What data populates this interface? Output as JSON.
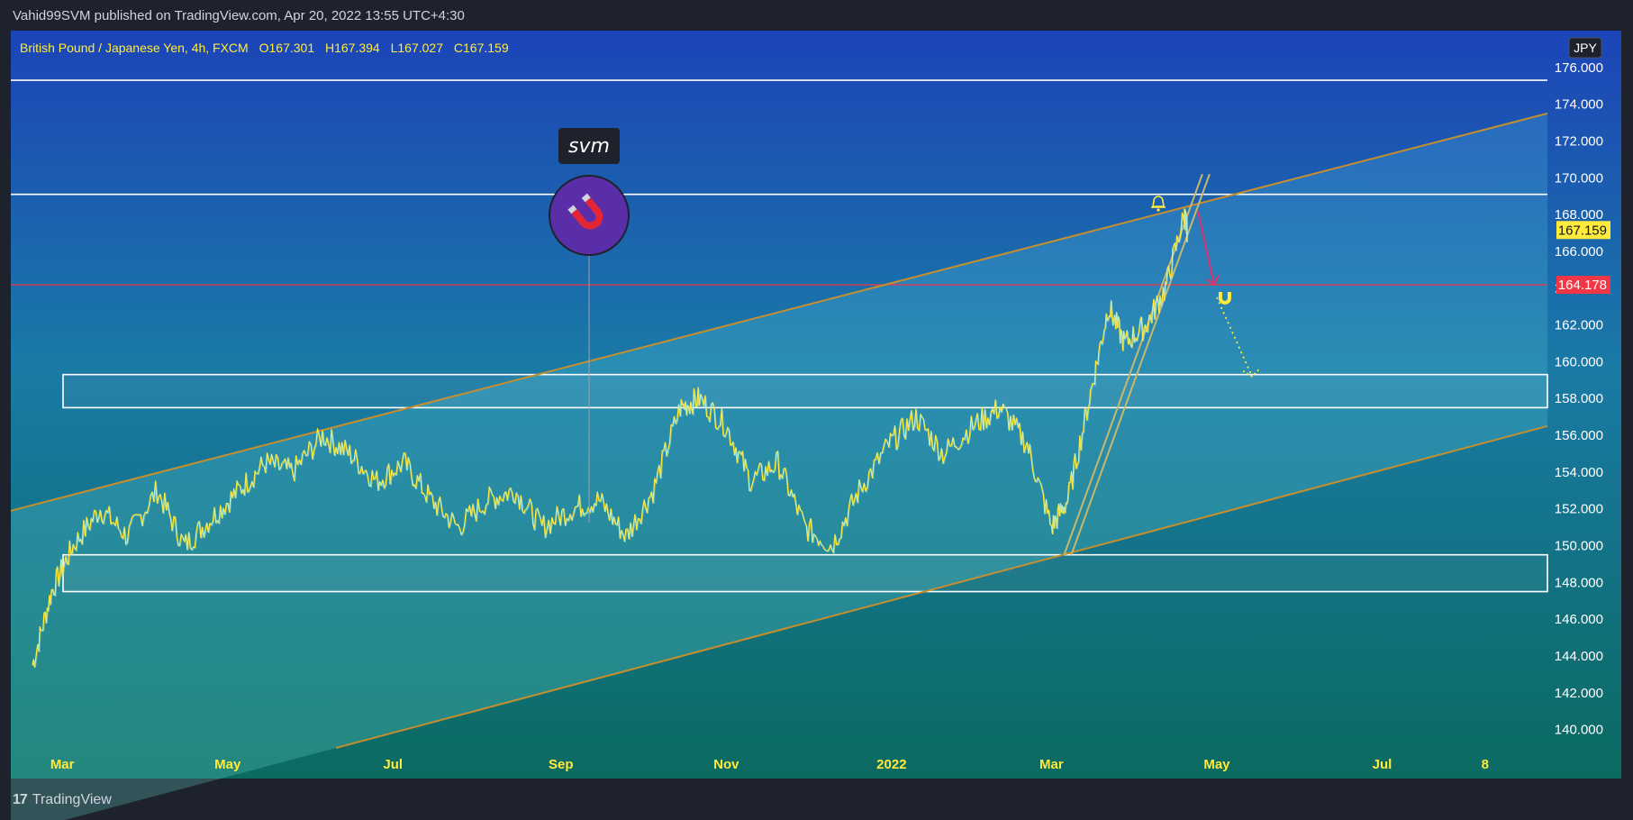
{
  "header": {
    "publisher": "Vahid99SVM published on TradingView.com, Apr 20, 2022 13:55 UTC+4:30"
  },
  "footer": {
    "brand": "TradingView",
    "logo_text": "17"
  },
  "symbol": {
    "name": "British Pound / Japanese Yen, 4h, FXCM",
    "open": "O167.301",
    "high": "H167.394",
    "low": "L167.027",
    "close": "C167.159"
  },
  "currency_badge": "JPY",
  "svm_label": "svm",
  "colors": {
    "price_line": "#ffeb3b",
    "current_price_bg": "#ffeb3b",
    "level_line": "#f23645",
    "channel": "#c68f2e",
    "zones": "#ffffff",
    "top_bg": "#1c44b8",
    "bottom_bg": "#0b6a60"
  },
  "chart_data": {
    "type": "line",
    "title": "British Pound / Japanese Yen, 4h, FXCM",
    "x_ticks": [
      "Mar",
      "May",
      "Jul",
      "Sep",
      "Nov",
      "2022",
      "Mar",
      "May",
      "Jul",
      "8"
    ],
    "y_ticks": [
      "140.000",
      "142.000",
      "144.000",
      "146.000",
      "148.000",
      "150.000",
      "152.000",
      "154.000",
      "156.000",
      "158.000",
      "160.000",
      "162.000",
      "164.000",
      "166.000",
      "168.000",
      "170.000",
      "172.000",
      "174.000",
      "176.000"
    ],
    "ylim": [
      139,
      178
    ],
    "current_price": "167.159",
    "level_price": "164.178",
    "series": [
      {
        "x": [
          "2021-02-18",
          "2021-02-25",
          "2021-03-05",
          "2021-03-15",
          "2021-03-25",
          "2021-04-05",
          "2021-04-15",
          "2021-04-25",
          "2021-05-05",
          "2021-05-15",
          "2021-05-25",
          "2021-06-05",
          "2021-06-15",
          "2021-06-25",
          "2021-07-05",
          "2021-07-15",
          "2021-07-25",
          "2021-08-05",
          "2021-08-15",
          "2021-08-25",
          "2021-09-05",
          "2021-09-15",
          "2021-09-25",
          "2021-10-05",
          "2021-10-15",
          "2021-10-22",
          "2021-11-01",
          "2021-11-10",
          "2021-11-20",
          "2021-11-30",
          "2021-12-10",
          "2021-12-20",
          "2021-12-31",
          "2022-01-10",
          "2022-01-20",
          "2022-01-31",
          "2022-02-10",
          "2022-02-20",
          "2022-03-01",
          "2022-03-07",
          "2022-03-15",
          "2022-03-22",
          "2022-03-28",
          "2022-04-05",
          "2022-04-12",
          "2022-04-19",
          "2022-04-20"
        ],
        "values": [
          143.5,
          147.5,
          150.0,
          152.0,
          150.5,
          153.0,
          150.0,
          151.5,
          153.0,
          154.5,
          154.0,
          156.0,
          155.0,
          153.5,
          154.5,
          152.5,
          151.0,
          152.5,
          153.0,
          151.0,
          152.0,
          152.5,
          150.5,
          153.0,
          157.5,
          158.0,
          156.5,
          153.5,
          154.5,
          151.0,
          150.0,
          153.0,
          155.5,
          157.0,
          155.0,
          156.5,
          157.5,
          155.5,
          151.0,
          152.5,
          158.0,
          163.0,
          161.0,
          162.0,
          164.0,
          168.0,
          167.159
        ]
      }
    ],
    "zones": [
      {
        "top": 159.3,
        "bottom": 157.5
      },
      {
        "top": 149.5,
        "bottom": 147.5
      }
    ],
    "horizontal_levels": [
      175.3,
      169.1,
      164.178
    ],
    "channel": {
      "upper": {
        "from": [
          "2021-02-18",
          152.2
        ],
        "to": [
          "2022-08-31",
          173.5
        ]
      },
      "lower": {
        "from": [
          "2021-06-10",
          139.0
        ],
        "to": [
          "2022-08-31",
          156.5
        ]
      }
    },
    "trendline": {
      "from": [
        "2022-03-07",
        149.5
      ],
      "to": [
        "2022-04-27",
        170.2
      ]
    },
    "annotations": {
      "projected_arrow": {
        "from": [
          "2022-04-24",
          168.2
        ],
        "to": [
          "2022-04-30",
          164.2
        ]
      },
      "dotted_path": {
        "from": [
          "2022-05-01",
          163.5
        ],
        "to": [
          "2022-05-14",
          159.2
        ]
      }
    }
  }
}
